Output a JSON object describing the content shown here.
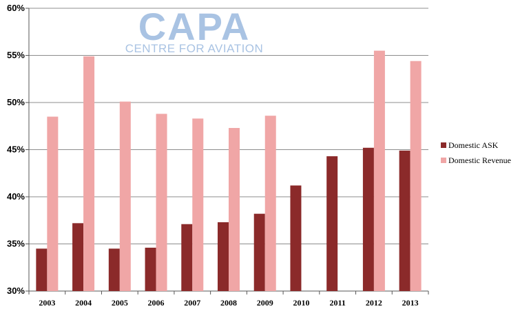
{
  "watermark": {
    "brand": "CAPA",
    "tagline": "CENTRE FOR AVIATION"
  },
  "chart_data": {
    "type": "bar",
    "categories": [
      "2003",
      "2004",
      "2005",
      "2006",
      "2007",
      "2008",
      "2009",
      "2010",
      "2011",
      "2012",
      "2013"
    ],
    "series": [
      {
        "name": "Domestic ASK",
        "color": "#8b2a2a",
        "values": [
          34.5,
          37.2,
          34.5,
          34.6,
          37.1,
          37.3,
          38.2,
          41.2,
          44.3,
          45.2,
          44.9
        ]
      },
      {
        "name": "Domestic Revenue",
        "color": "#f0a6a6",
        "values": [
          48.5,
          54.9,
          50.1,
          48.8,
          48.3,
          47.3,
          48.6,
          null,
          null,
          55.5,
          54.4
        ]
      }
    ],
    "y_ticks": [
      "30%",
      "35%",
      "40%",
      "45%",
      "50%",
      "55%",
      "60%"
    ],
    "ylim": [
      30,
      60
    ],
    "y_unit": "%",
    "grid": true,
    "legend_position": "right",
    "title": "",
    "xlabel": "",
    "ylabel": ""
  }
}
